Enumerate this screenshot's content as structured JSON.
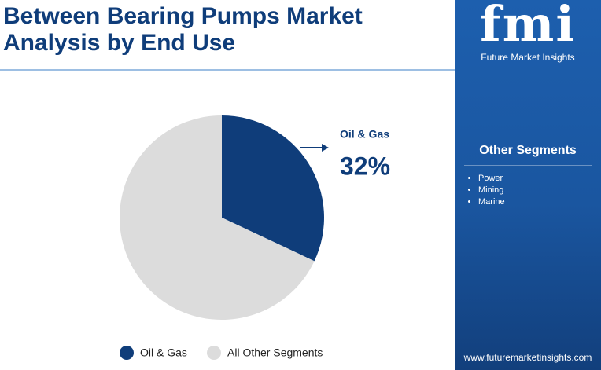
{
  "chart_data": {
    "type": "pie",
    "title": "Between Bearing Pumps Market Analysis by End Use",
    "categories": [
      "Oil & Gas",
      "All Other Segments"
    ],
    "values": [
      32,
      68
    ],
    "value_labels": [
      "32%",
      null
    ],
    "colors": [
      "#0f3d7a",
      "#dcdcdc"
    ]
  },
  "sidebar": {
    "logo": "fmi",
    "brand": "Future Market Insights",
    "heading": "Other Segments",
    "items": [
      "Power",
      "Mining",
      "Marine"
    ],
    "website": "www.futuremarketinsights.com"
  }
}
